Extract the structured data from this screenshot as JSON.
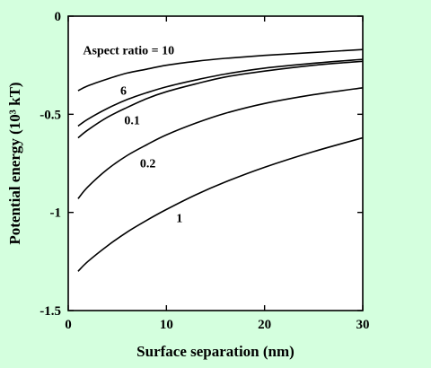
{
  "chart_data": {
    "type": "line",
    "title": "",
    "xlabel": "Surface separation (nm)",
    "ylabel": "Potential energy (10³ kT)",
    "xlim": [
      0,
      30
    ],
    "ylim": [
      -1.5,
      0
    ],
    "x_ticks": [
      0,
      10,
      20,
      30
    ],
    "x_tick_labels": [
      "0",
      "10",
      "20",
      "30"
    ],
    "y_ticks": [
      0,
      -0.5,
      -1,
      -1.5
    ],
    "y_tick_labels": [
      "0",
      "-0.5",
      "-1",
      "-1.5"
    ],
    "grid": false,
    "legend": "none",
    "series": [
      {
        "name": "Aspect ratio = 10",
        "x": [
          1,
          2,
          4,
          6,
          8,
          10,
          13,
          16,
          20,
          25,
          30
        ],
        "y": [
          -0.38,
          -0.355,
          -0.32,
          -0.29,
          -0.27,
          -0.25,
          -0.23,
          -0.215,
          -0.2,
          -0.185,
          -0.17
        ]
      },
      {
        "name": "6",
        "x": [
          1,
          2,
          4,
          6,
          8,
          10,
          13,
          16,
          20,
          25,
          30
        ],
        "y": [
          -0.56,
          -0.525,
          -0.47,
          -0.425,
          -0.39,
          -0.36,
          -0.325,
          -0.295,
          -0.265,
          -0.24,
          -0.22
        ]
      },
      {
        "name": "0.1",
        "x": [
          1,
          2,
          4,
          6,
          8,
          10,
          13,
          16,
          20,
          25,
          30
        ],
        "y": [
          -0.62,
          -0.58,
          -0.515,
          -0.465,
          -0.42,
          -0.385,
          -0.345,
          -0.31,
          -0.28,
          -0.25,
          -0.23
        ]
      },
      {
        "name": "0.2",
        "x": [
          1,
          2,
          4,
          6,
          8,
          10,
          13,
          16,
          20,
          25,
          30
        ],
        "y": [
          -0.93,
          -0.87,
          -0.78,
          -0.71,
          -0.655,
          -0.605,
          -0.545,
          -0.495,
          -0.445,
          -0.4,
          -0.365
        ]
      },
      {
        "name": "1",
        "x": [
          1,
          2,
          4,
          6,
          8,
          10,
          13,
          16,
          20,
          25,
          30
        ],
        "y": [
          -1.3,
          -1.25,
          -1.17,
          -1.1,
          -1.04,
          -0.985,
          -0.91,
          -0.845,
          -0.77,
          -0.69,
          -0.62
        ]
      }
    ],
    "annotations": [
      {
        "text": "Aspect ratio = 10",
        "x": 1.5,
        "y": -0.195
      },
      {
        "text": "6",
        "x": 5.3,
        "y": -0.4
      },
      {
        "text": "0.1",
        "x": 5.7,
        "y": -0.55
      },
      {
        "text": "0.2",
        "x": 7.3,
        "y": -0.77
      },
      {
        "text": "1",
        "x": 11,
        "y": -1.05
      }
    ]
  }
}
